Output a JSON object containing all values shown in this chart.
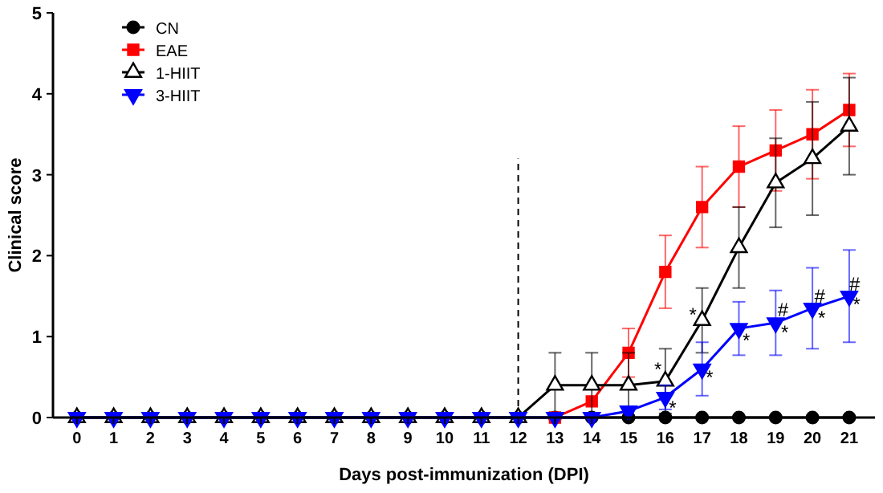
{
  "chart_data": {
    "type": "line",
    "xlabel": "Days post-immunization (DPI)",
    "ylabel": "Clinical score",
    "x": [
      0,
      1,
      2,
      3,
      4,
      5,
      6,
      7,
      8,
      9,
      10,
      11,
      12,
      13,
      14,
      15,
      16,
      17,
      18,
      19,
      20,
      21
    ],
    "xlim": [
      -0.65,
      21.7
    ],
    "xticks": [
      0,
      1,
      2,
      3,
      4,
      5,
      6,
      7,
      8,
      9,
      10,
      11,
      12,
      13,
      14,
      15,
      16,
      17,
      18,
      19,
      20,
      21
    ],
    "ylim": [
      0,
      5
    ],
    "yticks": [
      0,
      1,
      2,
      3,
      4,
      5
    ],
    "grid": false,
    "legend": "top left",
    "line_style": "solid",
    "series": [
      {
        "name": "CN",
        "color": "#000000",
        "marker": "circle",
        "values": [
          0,
          0,
          0,
          0,
          0,
          0,
          0,
          0,
          0,
          0,
          0,
          0,
          0,
          0,
          0,
          0,
          0,
          0,
          0,
          0,
          0,
          0
        ]
      },
      {
        "name": "EAE",
        "color": "#ff0000",
        "marker": "square",
        "values": [
          null,
          null,
          null,
          null,
          null,
          null,
          null,
          null,
          null,
          null,
          null,
          null,
          null,
          0,
          0.2,
          0.8,
          1.8,
          2.6,
          3.1,
          3.3,
          3.5,
          3.8
        ],
        "errors": [
          null,
          null,
          null,
          null,
          null,
          null,
          null,
          null,
          null,
          null,
          null,
          null,
          null,
          null,
          null,
          0.3,
          0.45,
          0.5,
          0.5,
          0.5,
          0.55,
          0.45
        ]
      },
      {
        "name": "1-HIIT",
        "color": "#000000",
        "marker": "triangle",
        "values": [
          0,
          0,
          0,
          0,
          0,
          0,
          0,
          0,
          0,
          0,
          0,
          0,
          0,
          0.4,
          0.4,
          0.4,
          0.45,
          1.2,
          2.1,
          2.9,
          3.2,
          3.6
        ],
        "errors": [
          null,
          null,
          null,
          null,
          null,
          null,
          null,
          null,
          null,
          null,
          null,
          null,
          null,
          0.4,
          0.4,
          0.4,
          0.4,
          0.4,
          0.5,
          0.55,
          0.7,
          0.6
        ]
      },
      {
        "name": "3-HIIT",
        "color": "#0000ff",
        "marker": "triangle-down",
        "values": [
          0,
          0,
          0,
          0,
          0,
          0,
          0,
          0,
          0,
          0,
          0,
          0,
          0,
          0,
          0,
          0.08,
          0.25,
          0.6,
          1.1,
          1.17,
          1.35,
          1.5
        ],
        "errors": [
          null,
          null,
          null,
          null,
          null,
          null,
          null,
          null,
          null,
          null,
          null,
          null,
          null,
          null,
          null,
          null,
          0.15,
          0.33,
          0.33,
          0.4,
          0.5,
          0.57
        ]
      }
    ],
    "ref_lines": [
      {
        "axis": "x",
        "value": 12,
        "line_style": "dashed",
        "color": "#000000"
      }
    ],
    "annotations": [
      {
        "text": "*",
        "x": 15.8,
        "y": 0.6
      },
      {
        "text": "*",
        "x": 16.75,
        "y": 1.27
      },
      {
        "text": "*",
        "x": 16.2,
        "y": 0.12
      },
      {
        "text": "*",
        "x": 17.2,
        "y": 0.5
      },
      {
        "text": "*",
        "x": 18.2,
        "y": 0.95
      },
      {
        "text": "*",
        "x": 19.25,
        "y": 1.05
      },
      {
        "text": "*",
        "x": 20.25,
        "y": 1.23
      },
      {
        "text": "*",
        "x": 21.2,
        "y": 1.4
      },
      {
        "text": "#",
        "x": 19.2,
        "y": 1.33
      },
      {
        "text": "#",
        "x": 20.2,
        "y": 1.5
      },
      {
        "text": "#",
        "x": 21.15,
        "y": 1.65
      }
    ]
  }
}
